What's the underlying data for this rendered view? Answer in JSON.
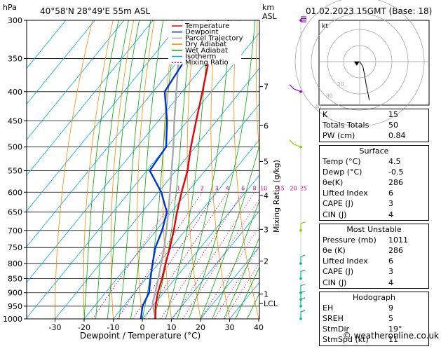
{
  "header": {
    "pressure_unit": "hPa",
    "location": "40°58'N  28°49'E  55m  ASL",
    "km_label": "km",
    "asl_label": "ASL",
    "datetime": "01.02.2023  15GMT  (Base: 18)"
  },
  "chart_data": {
    "type": "skew-t",
    "xlabel": "Dewpoint / Temperature (°C)",
    "mixing_ratio_axis_label": "Mixing Ratio (g/kg)",
    "pressure_levels": [
      300,
      350,
      400,
      450,
      500,
      550,
      600,
      650,
      700,
      750,
      800,
      850,
      900,
      950,
      1000
    ],
    "temperature_ticks": [
      -30,
      -20,
      -10,
      0,
      10,
      20,
      30,
      40
    ],
    "xlim": [
      -38,
      40
    ],
    "ylim_hpa": [
      1000,
      300
    ],
    "skew_factor_deg_per_log": 69.5,
    "km_ticks": [
      {
        "km": "1",
        "p": 905
      },
      {
        "km": "LCL",
        "p": 940
      },
      {
        "km": "2",
        "p": 792
      },
      {
        "km": "3",
        "p": 697
      },
      {
        "km": "4",
        "p": 608
      },
      {
        "km": "5",
        "p": 530
      },
      {
        "km": "6",
        "p": 459
      },
      {
        "km": "7",
        "p": 392
      }
    ],
    "mixing_ratio_labels": [
      "1",
      "2",
      "3",
      "4",
      "6",
      "8",
      "10",
      "15",
      "20",
      "25"
    ],
    "mixing_ratio_values": [
      1,
      2,
      3,
      4,
      6,
      8,
      10,
      15,
      20,
      25
    ],
    "legend": [
      {
        "name": "Temperature",
        "color": "#e8000b"
      },
      {
        "name": "Dewpoint",
        "color": "#0033dd"
      },
      {
        "name": "Parcel Trajectory",
        "color": "#aaaaaa"
      },
      {
        "name": "Dry Adiabat",
        "color": "#ff8800"
      },
      {
        "name": "Wet Adiabat",
        "color": "#00aa00"
      },
      {
        "name": "Isotherm",
        "color": "#00aaee"
      },
      {
        "name": "Mixing Ratio",
        "color": "#dd0088"
      }
    ],
    "series": [
      {
        "name": "Temperature",
        "color": "#e8000b",
        "points": [
          {
            "p": 1000,
            "t": 4.5
          },
          {
            "p": 950,
            "t": 1.0
          },
          {
            "p": 900,
            "t": -2.0
          },
          {
            "p": 850,
            "t": -4.5
          },
          {
            "p": 800,
            "t": -7.5
          },
          {
            "p": 750,
            "t": -10.5
          },
          {
            "p": 700,
            "t": -14.0
          },
          {
            "p": 650,
            "t": -18.0
          },
          {
            "p": 600,
            "t": -22.0
          },
          {
            "p": 550,
            "t": -26.0
          },
          {
            "p": 500,
            "t": -31.5
          },
          {
            "p": 450,
            "t": -37.0
          },
          {
            "p": 400,
            "t": -43.0
          },
          {
            "p": 350,
            "t": -50.0
          },
          {
            "p": 300,
            "t": -54.0
          }
        ]
      },
      {
        "name": "Dewpoint",
        "color": "#0033dd",
        "points": [
          {
            "p": 1000,
            "t": -0.5
          },
          {
            "p": 950,
            "t": -3.5
          },
          {
            "p": 900,
            "t": -5.0
          },
          {
            "p": 850,
            "t": -8.5
          },
          {
            "p": 800,
            "t": -12.0
          },
          {
            "p": 750,
            "t": -15.5
          },
          {
            "p": 700,
            "t": -18.0
          },
          {
            "p": 650,
            "t": -21.5
          },
          {
            "p": 600,
            "t": -29.0
          },
          {
            "p": 550,
            "t": -39.0
          },
          {
            "p": 500,
            "t": -40.0
          },
          {
            "p": 450,
            "t": -47.0
          },
          {
            "p": 400,
            "t": -56.0
          },
          {
            "p": 350,
            "t": -58.0
          },
          {
            "p": 300,
            "t": -61.0
          }
        ]
      },
      {
        "name": "Parcel Trajectory",
        "color": "#aaaaaa",
        "points": [
          {
            "p": 1000,
            "t": 4.5
          },
          {
            "p": 940,
            "t": -0.8
          },
          {
            "p": 900,
            "t": -2.9
          },
          {
            "p": 850,
            "t": -5.8
          },
          {
            "p": 800,
            "t": -9.0
          },
          {
            "p": 750,
            "t": -12.5
          },
          {
            "p": 700,
            "t": -16.5
          },
          {
            "p": 650,
            "t": -21.0
          },
          {
            "p": 600,
            "t": -26.0
          },
          {
            "p": 550,
            "t": -31.5
          },
          {
            "p": 500,
            "t": -37.5
          },
          {
            "p": 450,
            "t": -44.5
          },
          {
            "p": 400,
            "t": -52.0
          },
          {
            "p": 350,
            "t": -60.5
          },
          {
            "p": 300,
            "t": -70.0
          }
        ]
      }
    ],
    "wind_barbs_pressures": [
      1000,
      950,
      925,
      900,
      850,
      800,
      700,
      500,
      400,
      300
    ],
    "hodograph": {
      "label": "kt",
      "ring_labels": [
        "40",
        "30",
        "20"
      ],
      "trace": [
        {
          "u": 0,
          "v": 0
        },
        {
          "u": 2,
          "v": -3
        },
        {
          "u": 3,
          "v": -8
        },
        {
          "u": 4,
          "v": -14
        },
        {
          "u": 6,
          "v": -24
        }
      ],
      "storm_motion": {
        "u": -1.8,
        "v": -2.5
      }
    }
  },
  "stats": {
    "top_rows": [
      {
        "label": "K",
        "value": "15"
      },
      {
        "label": "Totals Totals",
        "value": "50"
      },
      {
        "label": "PW (cm)",
        "value": "0.84"
      }
    ],
    "surface": {
      "title": "Surface",
      "rows": [
        {
          "label": "Temp (°C)",
          "value": "4.5"
        },
        {
          "label": "Dewp (°C)",
          "value": "-0.5"
        },
        {
          "label": "θe(K)",
          "value": "286"
        },
        {
          "label": "Lifted Index",
          "value": "6"
        },
        {
          "label": "CAPE (J)",
          "value": "3"
        },
        {
          "label": "CIN (J)",
          "value": "4"
        }
      ]
    },
    "most_unstable": {
      "title": "Most Unstable",
      "rows": [
        {
          "label": "Pressure (mb)",
          "value": "1011"
        },
        {
          "label": "θe (K)",
          "value": "286"
        },
        {
          "label": "Lifted Index",
          "value": "6"
        },
        {
          "label": "CAPE (J)",
          "value": "3"
        },
        {
          "label": "CIN (J)",
          "value": "4"
        }
      ]
    },
    "hodograph": {
      "title": "Hodograph",
      "rows": [
        {
          "label": "EH",
          "value": "9"
        },
        {
          "label": "SREH",
          "value": "5"
        },
        {
          "label": "StmDir",
          "value": "19°"
        },
        {
          "label": "StmSpd (kt)",
          "value": "11"
        }
      ]
    }
  },
  "footer": {
    "copyright": "© weatheronline.co.uk"
  }
}
